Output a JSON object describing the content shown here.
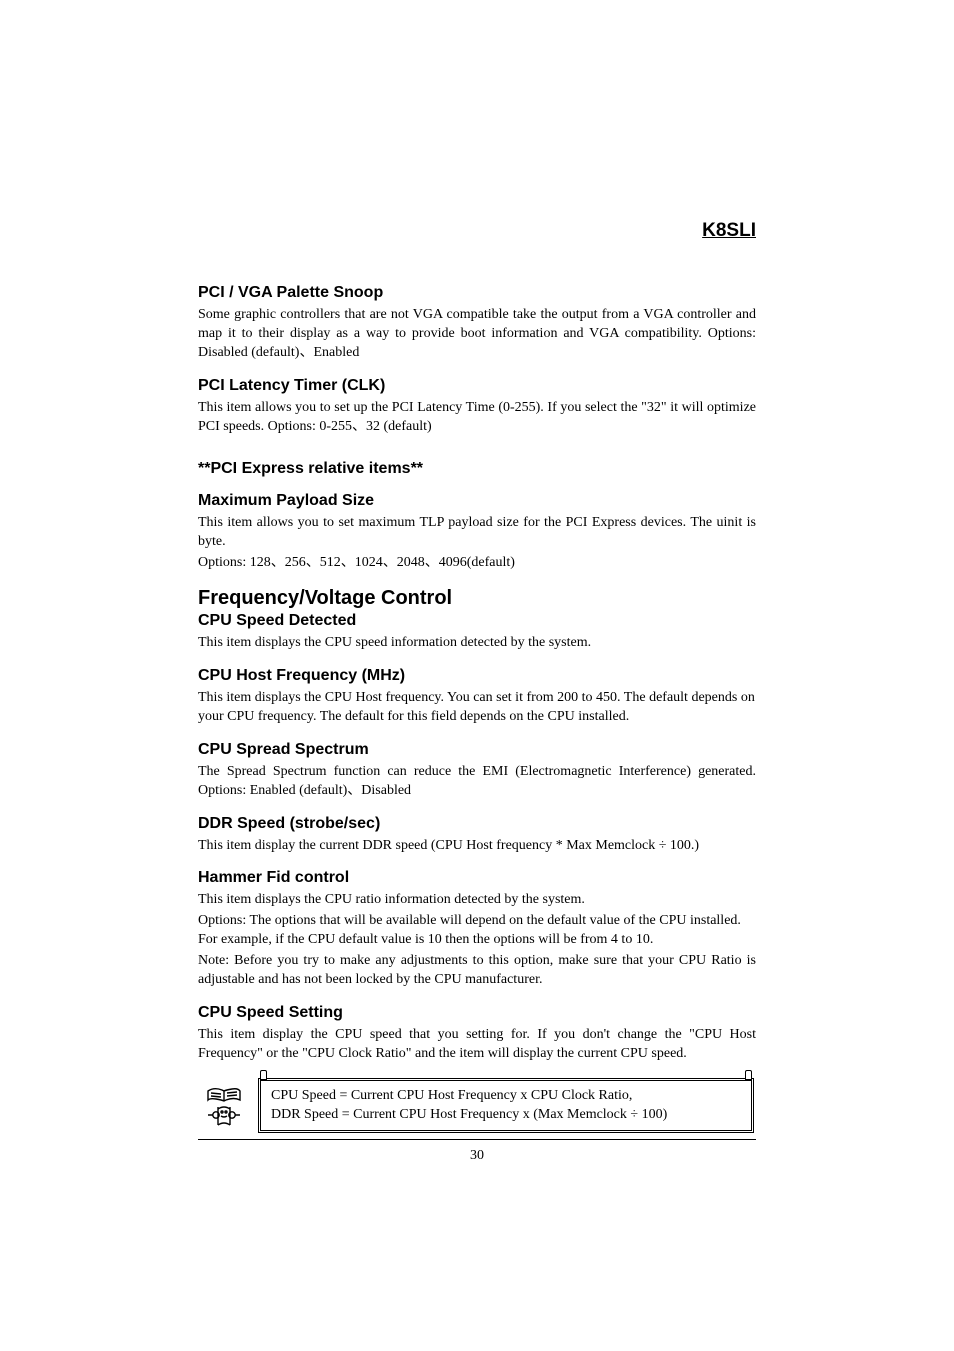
{
  "header": {
    "product": "K8SLI"
  },
  "sections": [
    {
      "heading": "PCI / VGA Palette Snoop",
      "level": "h2",
      "paras": [
        {
          "text": "Some graphic controllers that are not VGA compatible take the output from a VGA controller and map it to their display as a way to provide boot information and VGA compatibility. Options: Disabled (default)、Enabled",
          "justify": true
        }
      ]
    },
    {
      "heading": "PCI Latency Timer (CLK)",
      "level": "h2",
      "paras": [
        {
          "text": "This item allows you to set up the PCI Latency Time (0-255). If you select the \"32\" it will optimize PCI speeds. Options: 0-255、32 (default)",
          "justify": true
        }
      ]
    },
    {
      "heading": "**PCI Express relative items**",
      "level": "h2",
      "gap": true,
      "paras": []
    },
    {
      "heading": "Maximum Payload Size",
      "level": "h2",
      "paras": [
        {
          "text": "This item allows you to set maximum TLP payload size for the PCI Express devices. The uinit is byte.",
          "justify": true
        },
        {
          "text": "Options: 128、256、512、1024、2048、4096(default)",
          "justify": false
        }
      ]
    },
    {
      "heading": "Frequency/Voltage Control",
      "level": "h1",
      "paras": []
    },
    {
      "heading": "CPU Speed Detected",
      "level": "h2",
      "tight": true,
      "paras": [
        {
          "text": "This item displays the CPU speed information detected by the system.",
          "justify": false
        }
      ]
    },
    {
      "heading": "CPU Host Frequency (MHz)",
      "level": "h2",
      "paras": [
        {
          "text": "This item displays the CPU Host frequency. You can set it from 200 to 450. The default depends on your CPU frequency. The default for this field depends on the CPU installed.",
          "justify": false
        }
      ]
    },
    {
      "heading": "CPU Spread Spectrum",
      "level": "h2",
      "paras": [
        {
          "text": "The Spread Spectrum function can reduce the EMI (Electromagnetic Interference) generated. Options: Enabled (default)、Disabled",
          "justify": true
        }
      ]
    },
    {
      "heading": "DDR Speed (strobe/sec)",
      "level": "h2",
      "paras": [
        {
          "text": " This item display the current DDR speed (CPU Host frequency * Max Memclock ÷ 100.)",
          "justify": false
        }
      ]
    },
    {
      "heading": "Hammer Fid control",
      "level": "h2",
      "paras": [
        {
          "text": "This item displays the CPU ratio information detected by the system.",
          "justify": false
        },
        {
          "text": "Options:  The options that will be available will depend on the default value of the CPU installed. For example, if the CPU default value is 10 then the options will be from 4 to 10.",
          "justify": false
        },
        {
          "text": "Note:   Before you try to make any adjustments to this option, make sure that your CPU Ratio is adjustable and has not been locked by the CPU manufacturer.",
          "justify": true
        }
      ]
    },
    {
      "heading": "CPU Speed Setting",
      "level": "h2",
      "paras": [
        {
          "text": "This item display the CPU speed that you setting for. If you don't change the \"CPU Host Frequency\" or the \"CPU Clock Ratio\" and the item will display the current CPU speed.",
          "justify": true
        }
      ]
    }
  ],
  "notebox": {
    "line1": "CPU Speed = Current CPU Host Frequency x CPU Clock Ratio,",
    "line2": "DDR Speed = Current CPU Host Frequency x (Max Memclock ÷ 100)"
  },
  "page_number": "30",
  "colors": {
    "text": "#000000",
    "background": "#ffffff",
    "border": "#000000"
  },
  "typography": {
    "heading_font": "Arial",
    "body_font": "Times New Roman",
    "h1_size_pt": 15,
    "h2_size_pt": 12,
    "body_size_pt": 10.5,
    "header_size_pt": 14
  }
}
